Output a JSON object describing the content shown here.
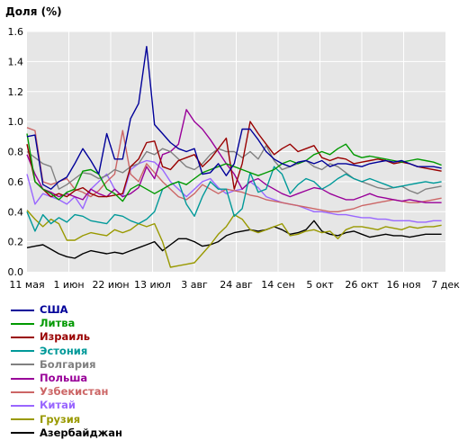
{
  "chart_data": {
    "type": "line",
    "title": "Доля (%)",
    "xlabel": "",
    "ylabel": "",
    "ylim": [
      0,
      1.6
    ],
    "yticks": [
      "0.0",
      "0.2",
      "0.4",
      "0.6",
      "0.8",
      "1.0",
      "1.2",
      "1.4",
      "1.6"
    ],
    "x_range": [
      "2020-05-11",
      "2020-12-07"
    ],
    "xticks": [
      {
        "date": "2020-05-11",
        "label": "11 мая"
      },
      {
        "date": "2020-06-01",
        "label": "1 июн"
      },
      {
        "date": "2020-06-22",
        "label": "22 июн"
      },
      {
        "date": "2020-07-13",
        "label": "13 июл"
      },
      {
        "date": "2020-08-03",
        "label": "3 авг"
      },
      {
        "date": "2020-08-24",
        "label": "24 авг"
      },
      {
        "date": "2020-09-14",
        "label": "14 сен"
      },
      {
        "date": "2020-10-05",
        "label": "5 окт"
      },
      {
        "date": "2020-10-26",
        "label": "26 окт"
      },
      {
        "date": "2020-11-16",
        "label": "16 ноя"
      },
      {
        "date": "2020-12-07",
        "label": "7 дек"
      }
    ],
    "grid": true,
    "legend_position": "bottom-left",
    "x": [
      "2020-05-11",
      "2020-05-15",
      "2020-05-19",
      "2020-05-23",
      "2020-05-27",
      "2020-05-31",
      "2020-06-04",
      "2020-06-08",
      "2020-06-12",
      "2020-06-16",
      "2020-06-20",
      "2020-06-24",
      "2020-06-28",
      "2020-07-02",
      "2020-07-06",
      "2020-07-10",
      "2020-07-14",
      "2020-07-18",
      "2020-07-22",
      "2020-07-26",
      "2020-07-30",
      "2020-08-03",
      "2020-08-07",
      "2020-08-11",
      "2020-08-15",
      "2020-08-19",
      "2020-08-23",
      "2020-08-27",
      "2020-08-31",
      "2020-09-04",
      "2020-09-08",
      "2020-09-12",
      "2020-09-16",
      "2020-09-20",
      "2020-09-24",
      "2020-09-28",
      "2020-10-02",
      "2020-10-06",
      "2020-10-10",
      "2020-10-14",
      "2020-10-18",
      "2020-10-22",
      "2020-10-26",
      "2020-10-30",
      "2020-11-03",
      "2020-11-07",
      "2020-11-11",
      "2020-11-15",
      "2020-11-19",
      "2020-11-23",
      "2020-11-27",
      "2020-12-01",
      "2020-12-05"
    ],
    "series": [
      {
        "name": "США",
        "color": "#000099",
        "values": [
          0.9,
          0.91,
          0.58,
          0.55,
          0.6,
          0.63,
          0.72,
          0.82,
          0.74,
          0.65,
          0.92,
          0.75,
          0.75,
          1.02,
          1.12,
          1.5,
          0.98,
          0.92,
          0.86,
          0.82,
          0.8,
          0.82,
          0.65,
          0.66,
          0.72,
          0.64,
          0.72,
          0.95,
          0.95,
          0.88,
          0.8,
          0.75,
          0.72,
          0.7,
          0.73,
          0.74,
          0.72,
          0.74,
          0.7,
          0.72,
          0.72,
          0.71,
          0.7,
          0.72,
          0.73,
          0.74,
          0.73,
          0.74,
          0.72,
          0.7,
          0.7,
          0.7,
          0.69
        ]
      },
      {
        "name": "Литва",
        "color": "#009900",
        "values": [
          0.92,
          0.6,
          0.55,
          0.52,
          0.48,
          0.53,
          0.55,
          0.67,
          0.68,
          0.65,
          0.55,
          0.52,
          0.47,
          0.55,
          0.58,
          0.55,
          0.52,
          0.55,
          0.58,
          0.6,
          0.58,
          0.62,
          0.66,
          0.68,
          0.7,
          0.72,
          0.7,
          0.68,
          0.66,
          0.64,
          0.66,
          0.68,
          0.72,
          0.74,
          0.72,
          0.74,
          0.78,
          0.8,
          0.78,
          0.82,
          0.85,
          0.78,
          0.76,
          0.77,
          0.76,
          0.75,
          0.74,
          0.73,
          0.74,
          0.75,
          0.74,
          0.73,
          0.71
        ]
      },
      {
        "name": "Израиль",
        "color": "#990000",
        "values": [
          0.85,
          0.6,
          0.55,
          0.5,
          0.52,
          0.5,
          0.54,
          0.56,
          0.52,
          0.5,
          0.5,
          0.51,
          0.52,
          0.7,
          0.75,
          0.86,
          0.87,
          0.7,
          0.68,
          0.74,
          0.76,
          0.78,
          0.7,
          0.75,
          0.82,
          0.89,
          0.55,
          0.72,
          1.0,
          0.92,
          0.85,
          0.78,
          0.82,
          0.85,
          0.8,
          0.82,
          0.84,
          0.76,
          0.74,
          0.76,
          0.75,
          0.72,
          0.73,
          0.74,
          0.75,
          0.74,
          0.72,
          0.73,
          0.72,
          0.7,
          0.69,
          0.68,
          0.67
        ]
      },
      {
        "name": "Эстония",
        "color": "#009999",
        "values": [
          0.4,
          0.27,
          0.38,
          0.32,
          0.36,
          0.33,
          0.38,
          0.37,
          0.34,
          0.33,
          0.32,
          0.38,
          0.37,
          0.34,
          0.32,
          0.35,
          0.4,
          0.55,
          0.58,
          0.6,
          0.45,
          0.37,
          0.5,
          0.6,
          0.55,
          0.55,
          0.37,
          0.42,
          0.66,
          0.53,
          0.55,
          0.7,
          0.65,
          0.52,
          0.58,
          0.62,
          0.6,
          0.55,
          0.58,
          0.62,
          0.65,
          0.62,
          0.6,
          0.62,
          0.6,
          0.58,
          0.56,
          0.57,
          0.58,
          0.59,
          0.6,
          0.59,
          0.6
        ]
      },
      {
        "name": "Болгария",
        "color": "#808080",
        "values": [
          0.8,
          0.76,
          0.72,
          0.7,
          0.55,
          0.58,
          0.62,
          0.66,
          0.65,
          0.62,
          0.64,
          0.68,
          0.66,
          0.7,
          0.72,
          0.8,
          0.78,
          0.82,
          0.8,
          0.75,
          0.7,
          0.68,
          0.72,
          0.78,
          0.82,
          0.8,
          0.8,
          0.76,
          0.8,
          0.75,
          0.84,
          0.74,
          0.68,
          0.7,
          0.72,
          0.74,
          0.7,
          0.68,
          0.72,
          0.7,
          0.66,
          0.62,
          0.6,
          0.58,
          0.56,
          0.55,
          0.56,
          0.57,
          0.54,
          0.52,
          0.55,
          0.56,
          0.57
        ]
      },
      {
        "name": "Польша",
        "color": "#990099",
        "values": [
          0.78,
          0.65,
          0.55,
          0.53,
          0.5,
          0.52,
          0.5,
          0.48,
          0.55,
          0.52,
          0.5,
          0.55,
          0.5,
          0.52,
          0.56,
          0.7,
          0.62,
          0.78,
          0.8,
          0.85,
          1.08,
          1.0,
          0.95,
          0.88,
          0.8,
          0.72,
          0.65,
          0.55,
          0.6,
          0.62,
          0.58,
          0.55,
          0.52,
          0.5,
          0.52,
          0.54,
          0.56,
          0.55,
          0.52,
          0.5,
          0.48,
          0.48,
          0.5,
          0.52,
          0.5,
          0.49,
          0.48,
          0.47,
          0.48,
          0.47,
          0.46,
          0.46,
          0.46
        ]
      },
      {
        "name": "Узбекистан",
        "color": "#cc6666",
        "values": [
          0.96,
          0.94,
          0.6,
          0.58,
          0.6,
          0.62,
          0.55,
          0.53,
          0.5,
          0.54,
          0.6,
          0.65,
          0.94,
          0.65,
          0.6,
          0.72,
          0.66,
          0.6,
          0.55,
          0.5,
          0.48,
          0.52,
          0.58,
          0.55,
          0.52,
          0.55,
          0.54,
          0.53,
          0.51,
          0.5,
          0.48,
          0.47,
          0.46,
          0.45,
          0.44,
          0.43,
          0.42,
          0.41,
          0.4,
          0.4,
          0.41,
          0.42,
          0.44,
          0.45,
          0.46,
          0.47,
          0.48,
          0.47,
          0.46,
          0.46,
          0.47,
          0.48,
          0.49
        ]
      },
      {
        "name": "Китай",
        "color": "#9966ff",
        "values": [
          0.65,
          0.45,
          0.52,
          0.5,
          0.48,
          0.45,
          0.5,
          0.42,
          0.55,
          0.6,
          0.65,
          0.55,
          0.5,
          0.68,
          0.72,
          0.74,
          0.73,
          0.68,
          0.6,
          0.55,
          0.5,
          0.55,
          0.6,
          0.62,
          0.56,
          0.52,
          0.54,
          0.55,
          0.6,
          0.56,
          0.5,
          0.48,
          0.46,
          0.45,
          0.44,
          0.42,
          0.4,
          0.4,
          0.39,
          0.38,
          0.38,
          0.37,
          0.36,
          0.36,
          0.35,
          0.35,
          0.34,
          0.34,
          0.34,
          0.33,
          0.33,
          0.34,
          0.34
        ]
      },
      {
        "name": "Грузия",
        "color": "#999900",
        "values": [
          0.41,
          0.35,
          0.3,
          0.35,
          0.32,
          0.21,
          0.21,
          0.24,
          0.26,
          0.25,
          0.24,
          0.28,
          0.26,
          0.28,
          0.32,
          0.3,
          0.32,
          0.2,
          0.03,
          0.04,
          0.05,
          0.06,
          0.12,
          0.18,
          0.25,
          0.3,
          0.38,
          0.35,
          0.28,
          0.26,
          0.28,
          0.3,
          0.32,
          0.24,
          0.25,
          0.27,
          0.28,
          0.26,
          0.27,
          0.22,
          0.28,
          0.3,
          0.3,
          0.29,
          0.28,
          0.3,
          0.29,
          0.28,
          0.3,
          0.29,
          0.3,
          0.3,
          0.31
        ]
      },
      {
        "name": "Азербайджан",
        "color": "#000000",
        "values": [
          0.16,
          0.17,
          0.18,
          0.15,
          0.12,
          0.1,
          0.09,
          0.12,
          0.14,
          0.13,
          0.12,
          0.13,
          0.12,
          0.14,
          0.16,
          0.18,
          0.2,
          0.14,
          0.18,
          0.22,
          0.22,
          0.2,
          0.17,
          0.18,
          0.2,
          0.24,
          0.26,
          0.27,
          0.28,
          0.27,
          0.28,
          0.3,
          0.28,
          0.25,
          0.26,
          0.28,
          0.34,
          0.27,
          0.25,
          0.24,
          0.26,
          0.27,
          0.25,
          0.23,
          0.24,
          0.25,
          0.24,
          0.24,
          0.23,
          0.24,
          0.25,
          0.25,
          0.25
        ]
      }
    ]
  }
}
